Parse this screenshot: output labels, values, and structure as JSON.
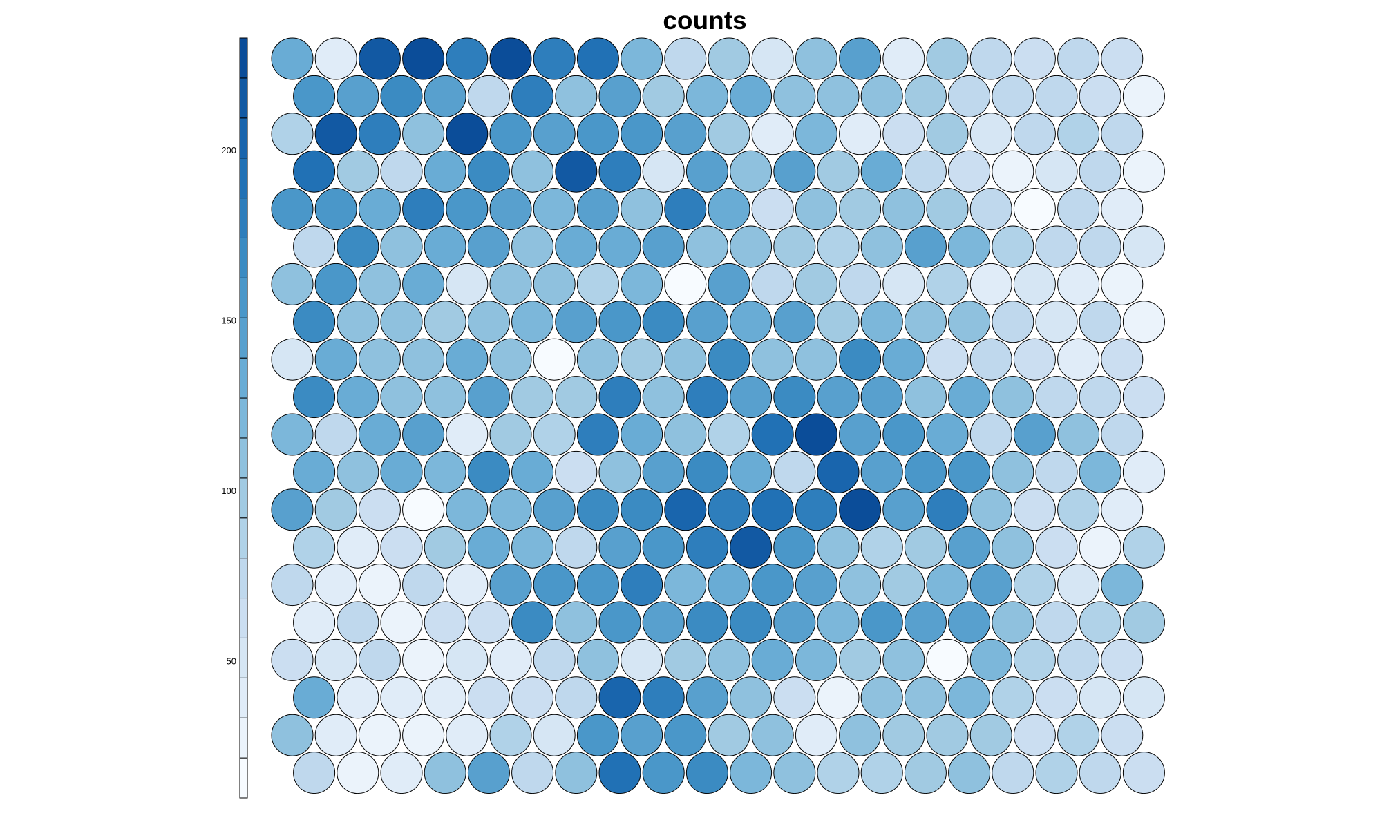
{
  "chart_data": {
    "type": "heatmap",
    "title": "counts",
    "grid": {
      "rows": 20,
      "cols": 20,
      "topology": "hexagonal"
    },
    "colorbar": {
      "min": 10,
      "max": 233,
      "ticks": [
        50,
        100,
        150,
        200
      ],
      "tick_labels": [
        "50",
        "100",
        "150",
        "200"
      ],
      "colors": [
        "#F7FBFF",
        "#EBF3FB",
        "#E0ECF8",
        "#D6E6F4",
        "#CBDEF1",
        "#BFD8ED",
        "#B0D2E8",
        "#A1CAE2",
        "#8FC1DE",
        "#7CB7DA",
        "#69ACD5",
        "#58A0CE",
        "#4A97C9",
        "#3B8BC2",
        "#2E7EBC",
        "#2171B5",
        "#1965AD",
        "#1259A3",
        "#0B4D99"
      ]
    },
    "values": [
      [
        135,
        40,
        210,
        230,
        185,
        225,
        180,
        190,
        125,
        70,
        100,
        55,
        115,
        140,
        40,
        95,
        80,
        65,
        75,
        60
      ],
      [
        160,
        140,
        165,
        150,
        80,
        180,
        115,
        140,
        100,
        120,
        130,
        110,
        110,
        105,
        100,
        75,
        80,
        70,
        65,
        30
      ],
      [
        85,
        210,
        180,
        115,
        233,
        160,
        140,
        155,
        155,
        140,
        95,
        45,
        120,
        40,
        60,
        100,
        50,
        75,
        85,
        75
      ],
      [
        190,
        95,
        80,
        130,
        170,
        115,
        220,
        175,
        50,
        150,
        115,
        140,
        95,
        130,
        75,
        65,
        25,
        55,
        75,
        25
      ],
      [
        160,
        160,
        135,
        185,
        155,
        140,
        125,
        150,
        110,
        175,
        130,
        65,
        115,
        95,
        105,
        100,
        70,
        20,
        80,
        40
      ],
      [
        75,
        170,
        115,
        130,
        140,
        105,
        130,
        135,
        145,
        105,
        105,
        100,
        85,
        115,
        140,
        125,
        90,
        70,
        70,
        55
      ],
      [
        110,
        160,
        105,
        135,
        55,
        110,
        105,
        85,
        120,
        20,
        150,
        80,
        100,
        70,
        55,
        85,
        40,
        55,
        40,
        30
      ],
      [
        170,
        105,
        110,
        95,
        110,
        120,
        145,
        155,
        165,
        145,
        130,
        140,
        95,
        125,
        115,
        105,
        80,
        50,
        75,
        30
      ],
      [
        50,
        130,
        110,
        110,
        130,
        115,
        20,
        110,
        100,
        105,
        165,
        110,
        115,
        165,
        130,
        65,
        75,
        60,
        40,
        65
      ],
      [
        165,
        130,
        115,
        115,
        145,
        100,
        100,
        180,
        115,
        175,
        150,
        165,
        140,
        140,
        105,
        135,
        115,
        70,
        80,
        65
      ],
      [
        120,
        80,
        130,
        140,
        45,
        100,
        90,
        180,
        135,
        115,
        85,
        190,
        230,
        145,
        155,
        130,
        75,
        140,
        115,
        80
      ],
      [
        135,
        115,
        130,
        120,
        165,
        130,
        60,
        105,
        145,
        165,
        130,
        80,
        200,
        140,
        160,
        155,
        105,
        70,
        120,
        45
      ],
      [
        150,
        100,
        60,
        15,
        120,
        120,
        150,
        170,
        170,
        200,
        175,
        195,
        175,
        225,
        150,
        180,
        115,
        60,
        85,
        40
      ],
      [
        85,
        45,
        60,
        100,
        130,
        120,
        80,
        140,
        160,
        185,
        210,
        160,
        110,
        85,
        100,
        145,
        115,
        60,
        25,
        90
      ],
      [
        80,
        40,
        30,
        80,
        40,
        140,
        160,
        160,
        175,
        125,
        130,
        160,
        150,
        115,
        100,
        120,
        140,
        85,
        50,
        120
      ],
      [
        45,
        80,
        30,
        60,
        65,
        170,
        110,
        155,
        150,
        170,
        165,
        145,
        120,
        155,
        140,
        145,
        105,
        75,
        85,
        100
      ],
      [
        65,
        50,
        70,
        25,
        55,
        40,
        80,
        115,
        55,
        100,
        110,
        135,
        125,
        95,
        110,
        15,
        120,
        85,
        80,
        60
      ],
      [
        130,
        45,
        35,
        35,
        65,
        60,
        70,
        200,
        185,
        145,
        110,
        65,
        30,
        105,
        105,
        120,
        85,
        60,
        50,
        50
      ],
      [
        115,
        45,
        25,
        30,
        40,
        85,
        50,
        155,
        150,
        155,
        95,
        110,
        45,
        115,
        95,
        100,
        95,
        65,
        90,
        65
      ],
      [
        80,
        30,
        45,
        115,
        140,
        75,
        110,
        190,
        160,
        170,
        120,
        115,
        90,
        85,
        100,
        115,
        70,
        90,
        80,
        60
      ]
    ]
  }
}
